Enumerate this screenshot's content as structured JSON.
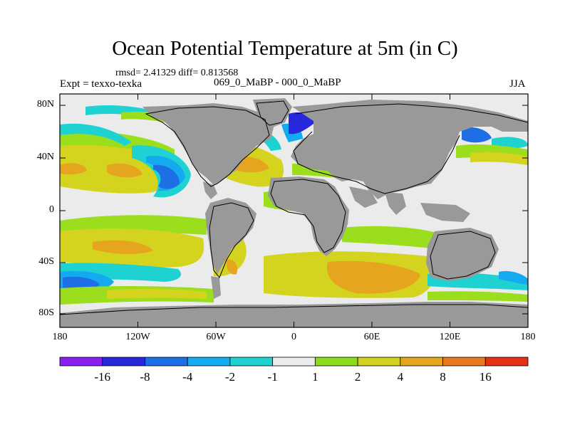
{
  "title": "Ocean Potential Temperature at 5m (in C)",
  "stats": "rmsd= 2.41329 diff= 0.813568",
  "experiment": "Expt = texxo-texka",
  "period": "069_0_MaBP - 000_0_MaBP",
  "season": "JJA",
  "y_axis_labels": [
    "80N",
    "40N",
    "0",
    "40S",
    "80S"
  ],
  "x_axis_labels": [
    "180",
    "120W",
    "60W",
    "0",
    "60E",
    "120E",
    "180"
  ],
  "colorbar": {
    "labels": [
      "-16",
      "-8",
      "-4",
      "-2",
      "-1",
      "1",
      "2",
      "4",
      "8",
      "16"
    ],
    "colors": [
      "#8c1ef0",
      "#2828dc",
      "#1e6ee6",
      "#14aaf0",
      "#1ed2d2",
      "#ebebeb",
      "#8cdc1e",
      "#d2d21e",
      "#e6a51e",
      "#e6781e",
      "#e63214"
    ]
  },
  "map_colors": {
    "land": "#999999",
    "no_change": "#ebebeb",
    "green": "#9ade1e",
    "yellow": "#d4d41e",
    "orange": "#e6a51e",
    "cyan": "#1ed2d2",
    "light_blue": "#14aaf0",
    "blue": "#1e6ee6",
    "dark_blue": "#2828dc"
  }
}
